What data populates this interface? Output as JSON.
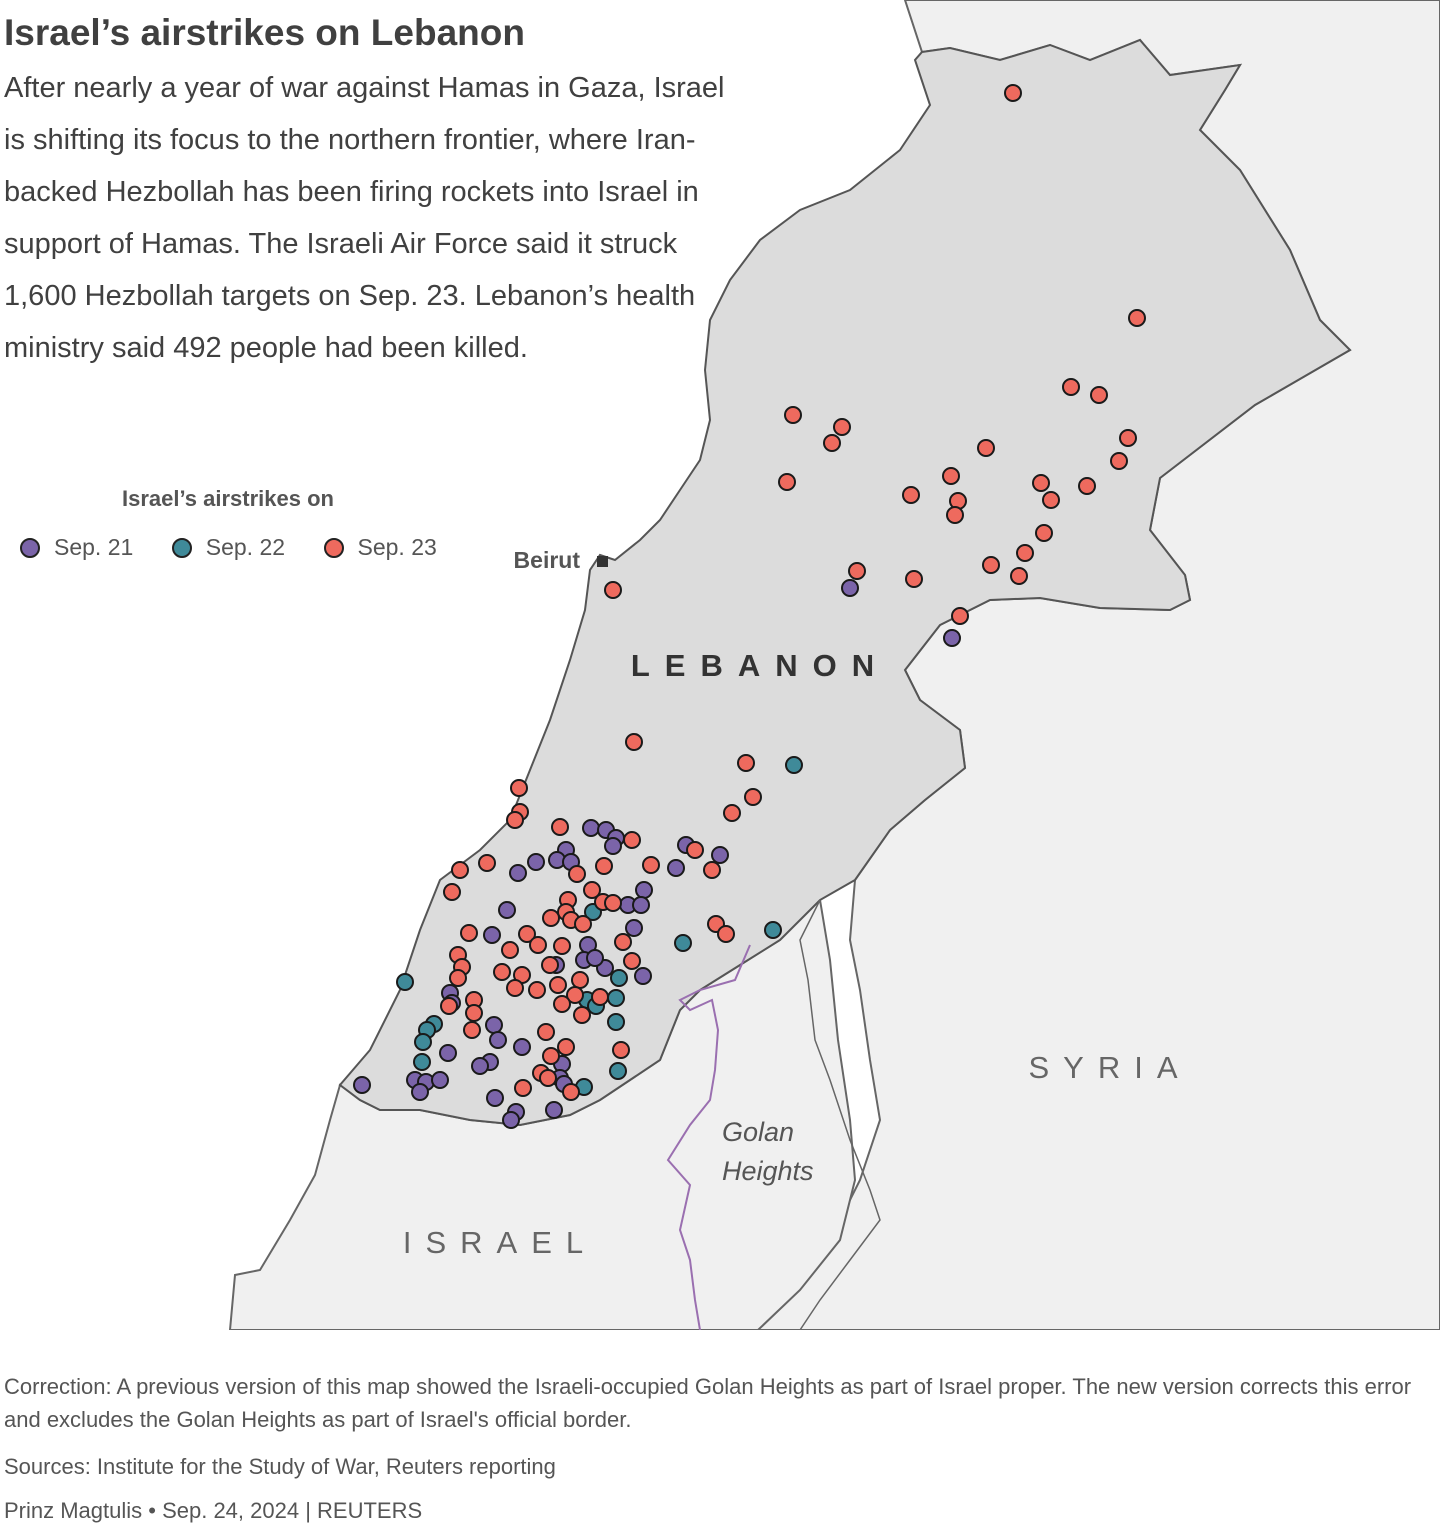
{
  "header": {
    "title": "Israel’s airstrikes on Lebanon",
    "deck": "After nearly a year of war against Hamas in Gaza, Israel is shifting its focus to the northern frontier, where Iran-backed Hezbollah has been firing rockets into Israel in support of Hamas. The Israeli Air Force said it struck 1,600 Hezbollah targets on Sep. 23. Lebanon’s health ministry said 492 people had been killed."
  },
  "legend": {
    "title": "Israel’s airstrikes on",
    "items": [
      {
        "label": "Sep. 21",
        "color": "#7b64a9"
      },
      {
        "label": "Sep. 22",
        "color": "#3f8a99"
      },
      {
        "label": "Sep. 23",
        "color": "#ee6a5e"
      }
    ]
  },
  "map": {
    "labels": {
      "lebanon": "LEBANON",
      "syria": "SYRIA",
      "israel": "ISRAEL",
      "golan_line1": "Golan",
      "golan_line2": "Heights",
      "beirut": "Beirut"
    },
    "colors": {
      "lebanon_fill": "#dcdcdc",
      "neighbor_fill": "#f0f0f0",
      "border": "#555555",
      "golan_border": "#9a6fb0"
    }
  },
  "footer": {
    "correction": "Correction: A previous version of this map showed the Israeli-occupied Golan Heights as part of Israel proper. The new version corrects this error and excludes the Golan Heights as part of Israel's official border.",
    "sources": "Sources: Institute for the Study of War, Reuters reporting",
    "credit": "Prinz Magtulis • Sep. 24, 2024 | REUTERS"
  }
}
